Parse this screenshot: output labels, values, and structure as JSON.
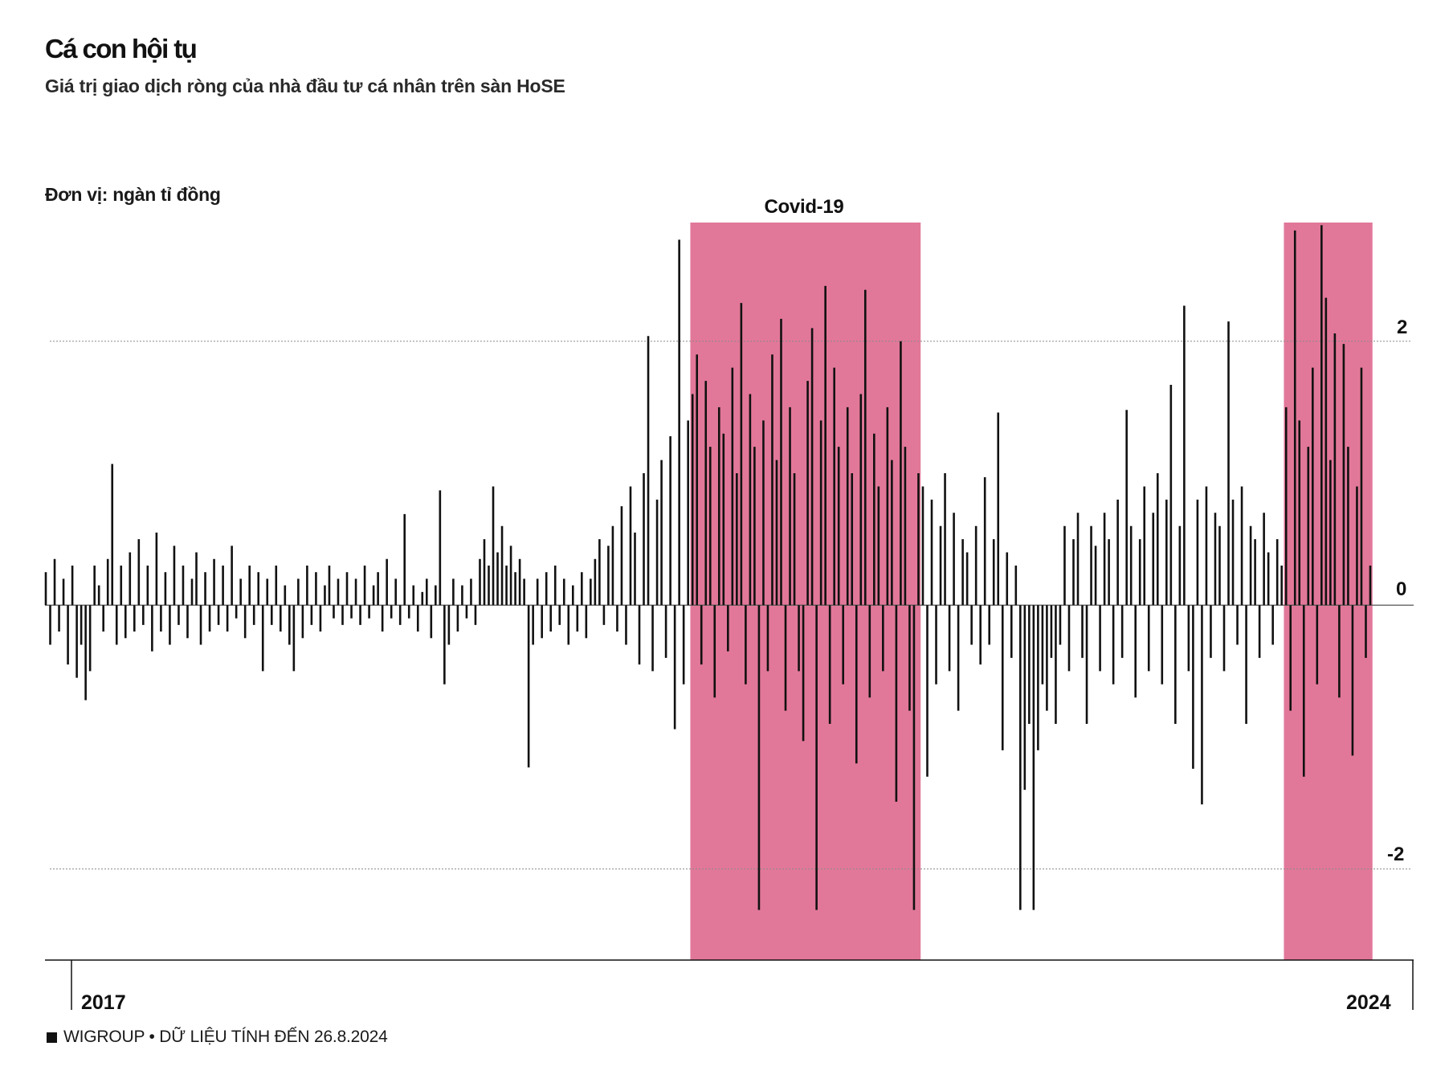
{
  "footer": {
    "source": "WIGROUP • DỮ LIỆU TÍNH ĐẾN 26.8.2024"
  },
  "colors": {
    "highlight": "#e27899",
    "bar": "#111111",
    "text": "#111111",
    "gridline": "#8a8a8a",
    "zero_line": "#555555"
  },
  "chart_data": {
    "type": "bar",
    "title": "Cá con hội tụ",
    "subtitle": "Giá trị giao dịch ròng của nhà đầu tư cá nhân trên sàn HoSE",
    "ylabel": "Đơn vị: ngàn tỉ đồng",
    "xlabel": "",
    "x_tick_labels": [
      "2017",
      "2024"
    ],
    "y_ticks": [
      2,
      0,
      -2
    ],
    "y_tick_labels": [
      "2",
      "0",
      "-2"
    ],
    "ylim": [
      -2.69,
      2.9
    ],
    "grid": true,
    "highlights": [
      {
        "label": "Covid-19",
        "start": 146,
        "end": 197
      },
      {
        "start": 280,
        "end": 299
      }
    ],
    "values": [
      0.25,
      -0.3,
      0.35,
      -0.2,
      0.2,
      -0.45,
      0.3,
      -0.55,
      -0.3,
      -0.72,
      -0.5,
      0.3,
      0.15,
      -0.2,
      0.35,
      1.07,
      -0.3,
      0.3,
      -0.25,
      0.4,
      -0.2,
      0.5,
      -0.15,
      0.3,
      -0.35,
      0.55,
      -0.2,
      0.25,
      -0.3,
      0.45,
      -0.15,
      0.3,
      -0.25,
      0.2,
      0.4,
      -0.3,
      0.25,
      -0.2,
      0.35,
      -0.15,
      0.3,
      -0.2,
      0.45,
      -0.1,
      0.2,
      -0.25,
      0.3,
      -0.15,
      0.25,
      -0.5,
      0.2,
      -0.15,
      0.3,
      -0.2,
      0.15,
      -0.3,
      -0.5,
      0.2,
      -0.25,
      0.3,
      -0.15,
      0.25,
      -0.2,
      0.15,
      0.3,
      -0.1,
      0.2,
      -0.15,
      0.25,
      -0.1,
      0.2,
      -0.15,
      0.3,
      -0.1,
      0.15,
      0.25,
      -0.2,
      0.35,
      -0.1,
      0.2,
      -0.15,
      0.69,
      -0.1,
      0.15,
      -0.2,
      0.1,
      0.2,
      -0.25,
      0.15,
      0.87,
      -0.6,
      -0.3,
      0.2,
      -0.2,
      0.15,
      -0.1,
      0.2,
      -0.15,
      0.35,
      0.5,
      0.3,
      0.9,
      0.4,
      0.6,
      0.3,
      0.45,
      0.25,
      0.35,
      0.2,
      -1.23,
      -0.3,
      0.2,
      -0.25,
      0.25,
      -0.2,
      0.3,
      -0.15,
      0.2,
      -0.3,
      0.15,
      -0.2,
      0.25,
      -0.25,
      0.2,
      0.35,
      0.5,
      -0.15,
      0.45,
      0.6,
      -0.2,
      0.75,
      -0.3,
      0.9,
      0.55,
      -0.45,
      1.0,
      2.04,
      -0.5,
      0.8,
      1.1,
      -0.4,
      1.28,
      -0.94,
      2.77,
      -0.6,
      1.4,
      1.6,
      1.9,
      -0.45,
      1.7,
      1.2,
      -0.7,
      1.5,
      1.3,
      -0.35,
      1.8,
      1.0,
      2.29,
      -0.6,
      1.6,
      1.2,
      -2.31,
      1.4,
      -0.5,
      1.9,
      1.1,
      2.17,
      -0.8,
      1.5,
      1.0,
      -0.5,
      -1.03,
      1.7,
      2.1,
      -2.31,
      1.4,
      2.42,
      -0.9,
      1.8,
      1.2,
      -0.6,
      1.5,
      1.0,
      -1.2,
      1.6,
      2.39,
      -0.7,
      1.3,
      0.9,
      -0.5,
      1.5,
      1.1,
      -1.49,
      2.0,
      1.2,
      -0.8,
      -2.31,
      1.0,
      0.9,
      -1.3,
      0.8,
      -0.6,
      0.6,
      1.0,
      -0.5,
      0.7,
      -0.8,
      0.5,
      0.4,
      -0.3,
      0.6,
      -0.45,
      0.97,
      -0.3,
      0.5,
      1.46,
      -1.1,
      0.4,
      -0.4,
      0.3,
      -2.31,
      -1.4,
      -0.9,
      -2.31,
      -1.1,
      -0.6,
      -0.8,
      -0.4,
      -0.9,
      -0.3,
      0.6,
      -0.5,
      0.5,
      0.7,
      -0.4,
      -0.9,
      0.6,
      0.45,
      -0.5,
      0.7,
      0.5,
      -0.6,
      0.8,
      -0.4,
      1.48,
      0.6,
      -0.7,
      0.5,
      0.9,
      -0.5,
      0.7,
      1.0,
      -0.6,
      0.8,
      1.67,
      -0.9,
      0.6,
      2.27,
      -0.5,
      -1.24,
      0.8,
      -1.51,
      0.9,
      -0.4,
      0.7,
      0.6,
      -0.5,
      2.15,
      0.8,
      -0.3,
      0.9,
      -0.9,
      0.6,
      0.5,
      -0.4,
      0.7,
      0.4,
      -0.3,
      0.5,
      0.3,
      1.5,
      -0.8,
      2.84,
      1.4,
      -1.3,
      1.2,
      1.8,
      -0.6,
      2.88,
      2.33,
      1.1,
      2.06,
      -0.7,
      1.98,
      1.2,
      -1.14,
      0.9,
      1.8,
      -0.4,
      0.3
    ]
  }
}
